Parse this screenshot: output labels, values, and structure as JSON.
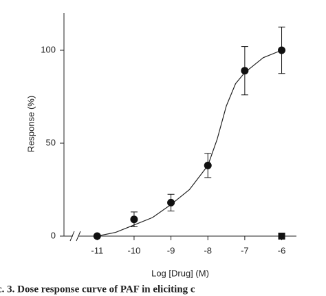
{
  "chart_data": {
    "type": "scatter",
    "xlabel": "Log [Drug] (M)",
    "ylabel": "Response (%)",
    "xlim": [
      -11.9,
      -5.6
    ],
    "ylim": [
      0,
      120
    ],
    "xticks": [
      -11,
      -10,
      -9,
      -8,
      -7,
      -6
    ],
    "yticks": [
      0,
      50,
      100
    ],
    "series": [
      {
        "marker": "circle",
        "color": "#111111",
        "x": [
          -11,
          -10,
          -9,
          -8,
          -7,
          -6
        ],
        "values": [
          0,
          9,
          18,
          38,
          89,
          100
        ],
        "errors": [
          0,
          4,
          4.5,
          6.5,
          13,
          12.5
        ]
      },
      {
        "marker": "square",
        "color": "#111111",
        "x": [
          -6
        ],
        "values": [
          0
        ]
      }
    ],
    "fit": {
      "color": "#222222",
      "x": [
        -11,
        -10.5,
        -10,
        -9.5,
        -9,
        -8.5,
        -8,
        -7.75,
        -7.5,
        -7.25,
        -7,
        -6.5,
        -6
      ],
      "values": [
        0,
        2,
        6,
        10,
        17,
        25,
        38,
        52,
        70,
        82,
        88,
        96,
        100
      ]
    }
  },
  "caption": "c. 3. Dose response curve of PAF in eliciting c"
}
